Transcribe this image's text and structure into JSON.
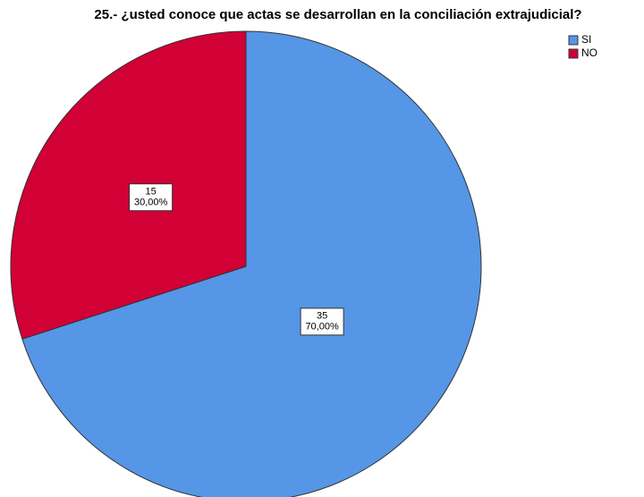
{
  "chart_data": {
    "type": "pie",
    "title": "25.- ¿usted conoce que actas se desarrollan en la conciliación extrajudicial?",
    "categories": [
      "SI",
      "NO"
    ],
    "values": [
      35,
      15
    ],
    "percentages": [
      70,
      30
    ],
    "percentage_labels": [
      "70,00%",
      "30,00%"
    ],
    "colors": [
      "#5596e6",
      "#d10136"
    ],
    "legend": "top-right"
  }
}
